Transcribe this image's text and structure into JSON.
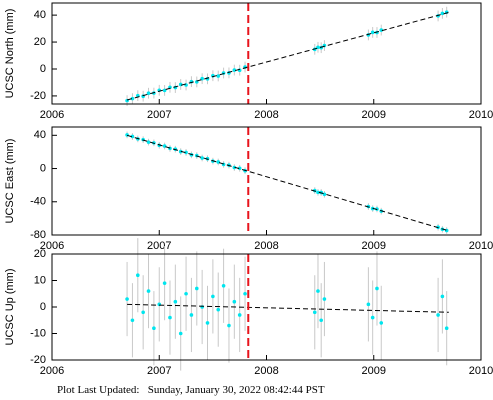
{
  "chart_data": [
    {
      "type": "scatter",
      "ylabel": "UCSC North (mm)",
      "color": "#00e5ee",
      "error_color": "#c8c8c8",
      "error": 4,
      "x": [
        2006.7,
        2006.75,
        2006.8,
        2006.85,
        2006.9,
        2006.95,
        2007.0,
        2007.05,
        2007.1,
        2007.15,
        2007.2,
        2007.25,
        2007.3,
        2007.35,
        2007.4,
        2007.45,
        2007.5,
        2007.55,
        2007.6,
        2007.65,
        2007.7,
        2007.75,
        2007.8,
        2008.45,
        2008.48,
        2008.51,
        2008.54,
        2008.95,
        2008.99,
        2009.03,
        2009.07,
        2009.6,
        2009.64,
        2009.68
      ],
      "values": [
        -23.5,
        -22.0,
        -19.8,
        -20.2,
        -18.0,
        -17.9,
        -15.8,
        -15.9,
        -13.6,
        -13.8,
        -11.5,
        -11.9,
        -9.4,
        -9.6,
        -7.2,
        -7.3,
        -5.0,
        -5.2,
        -3.0,
        -2.9,
        -0.8,
        -0.9,
        1.4,
        14.6,
        16.1,
        15.8,
        17.4,
        25.3,
        27.2,
        27.1,
        28.9,
        39.4,
        41.3,
        42.2
      ],
      "trend": {
        "x": [
          2006.7,
          2009.7
        ],
        "values": [
          -23,
          42
        ],
        "color": "#000000"
      },
      "event_x": 2007.83,
      "event_color": "#e8141c",
      "xlim": [
        2006,
        2010
      ],
      "xticks": [
        2006,
        2007,
        2008,
        2009,
        2010
      ],
      "ylim": [
        -26,
        49
      ],
      "yticks": [
        -20,
        0,
        20,
        40
      ]
    },
    {
      "type": "scatter",
      "ylabel": "UCSC East (mm)",
      "color": "#00e5ee",
      "error_color": "#c8c8c8",
      "error": 4,
      "x": [
        2006.7,
        2006.75,
        2006.8,
        2006.85,
        2006.9,
        2006.95,
        2007.0,
        2007.05,
        2007.1,
        2007.15,
        2007.2,
        2007.25,
        2007.3,
        2007.35,
        2007.4,
        2007.45,
        2007.5,
        2007.55,
        2007.6,
        2007.65,
        2007.7,
        2007.75,
        2007.8,
        2008.45,
        2008.48,
        2008.51,
        2008.54,
        2008.95,
        2008.99,
        2009.03,
        2009.07,
        2009.6,
        2009.64,
        2009.68
      ],
      "values": [
        40.5,
        38.6,
        35.7,
        34.8,
        31.8,
        30.9,
        28.0,
        27.1,
        24.2,
        23.3,
        20.4,
        19.4,
        16.5,
        15.6,
        12.7,
        11.8,
        8.9,
        7.9,
        5.0,
        4.1,
        1.2,
        0.3,
        -2.6,
        -26.5,
        -28.7,
        -28.8,
        -31.0,
        -45.7,
        -48.2,
        -48.7,
        -51.3,
        -70.6,
        -73.1,
        -74.6
      ],
      "trend": {
        "x": [
          2006.7,
          2009.7
        ],
        "values": [
          40,
          -75
        ],
        "color": "#000000"
      },
      "event_x": 2007.83,
      "event_color": "#e8141c",
      "xlim": [
        2006,
        2010
      ],
      "xticks": [
        2006,
        2007,
        2008,
        2009,
        2010
      ],
      "ylim": [
        -80,
        50
      ],
      "yticks": [
        -80,
        -40,
        0,
        40
      ]
    },
    {
      "type": "scatter",
      "ylabel": "UCSC Up (mm)",
      "color": "#00e5ee",
      "error_color": "#c8c8c8",
      "error": 14,
      "x": [
        2006.7,
        2006.75,
        2006.8,
        2006.85,
        2006.9,
        2006.95,
        2007.0,
        2007.05,
        2007.1,
        2007.15,
        2007.2,
        2007.25,
        2007.3,
        2007.35,
        2007.4,
        2007.45,
        2007.5,
        2007.55,
        2007.6,
        2007.65,
        2007.7,
        2007.75,
        2007.8,
        2008.45,
        2008.48,
        2008.51,
        2008.54,
        2008.95,
        2008.99,
        2009.03,
        2009.07,
        2009.6,
        2009.64,
        2009.68
      ],
      "values": [
        3,
        -5,
        12,
        -2,
        6,
        -8,
        1,
        9,
        -4,
        2,
        -10,
        5,
        -3,
        7,
        0,
        -6,
        4,
        -1,
        8,
        -7,
        2,
        -3,
        5,
        -2,
        6,
        -5,
        3,
        1,
        -4,
        7,
        -6,
        -3,
        4,
        -8
      ],
      "trend": {
        "x": [
          2006.7,
          2009.7
        ],
        "values": [
          1,
          -2
        ],
        "color": "#000000"
      },
      "event_x": 2007.83,
      "event_color": "#e8141c",
      "xlim": [
        2006,
        2010
      ],
      "xticks": [
        2006,
        2007,
        2008,
        2009,
        2010
      ],
      "ylim": [
        -20,
        20
      ],
      "yticks": [
        -20,
        -10,
        0,
        10,
        20
      ]
    }
  ],
  "footer": "Plot Last Updated:   Sunday, January 30, 2022 08:42:44 PST"
}
